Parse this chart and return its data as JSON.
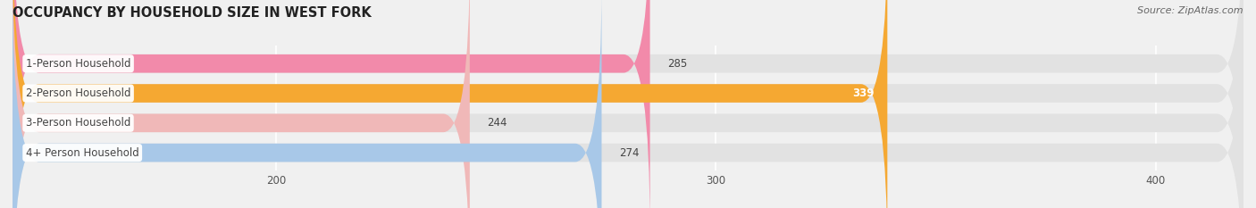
{
  "title": "OCCUPANCY BY HOUSEHOLD SIZE IN WEST FORK",
  "source": "Source: ZipAtlas.com",
  "categories": [
    "1-Person Household",
    "2-Person Household",
    "3-Person Household",
    "4+ Person Household"
  ],
  "values": [
    285,
    339,
    244,
    274
  ],
  "bar_colors": [
    "#f28aaa",
    "#f5a832",
    "#f0b8b8",
    "#a8c8e8"
  ],
  "value_label_inside": [
    false,
    true,
    false,
    false
  ],
  "xlim_data": [
    140,
    420
  ],
  "x_axis_min": 200,
  "xticks": [
    200,
    300,
    400
  ],
  "bar_height": 0.62,
  "background_color": "#f0f0f0",
  "bar_bg_color": "#e2e2e2",
  "title_fontsize": 10.5,
  "label_fontsize": 8.5,
  "value_fontsize": 8.5,
  "source_fontsize": 8,
  "label_box_color": "#ffffff",
  "label_text_color": "#444444",
  "value_color_outside": "#444444",
  "value_color_inside": "#ffffff"
}
